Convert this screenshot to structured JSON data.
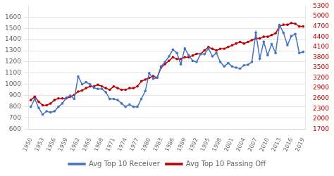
{
  "chart_data": {
    "type": "line",
    "x": [
      1950,
      1951,
      1952,
      1953,
      1954,
      1955,
      1956,
      1957,
      1958,
      1959,
      1960,
      1961,
      1962,
      1963,
      1964,
      1965,
      1966,
      1967,
      1968,
      1969,
      1970,
      1971,
      1972,
      1973,
      1974,
      1975,
      1976,
      1977,
      1978,
      1979,
      1980,
      1981,
      1982,
      1983,
      1984,
      1985,
      1986,
      1987,
      1988,
      1989,
      1990,
      1991,
      1992,
      1993,
      1994,
      1995,
      1996,
      1997,
      1998,
      1999,
      2000,
      2001,
      2002,
      2003,
      2004,
      2005,
      2006,
      2007,
      2008,
      2009,
      2010,
      2011,
      2012,
      2013,
      2014,
      2015,
      2016,
      2017,
      2018,
      2019
    ],
    "series": [
      {
        "name": "Avg Top 10 Receiver",
        "color": "#4472c4",
        "marker": "circle",
        "axis": "y",
        "values": [
          800,
          870,
          790,
          730,
          760,
          750,
          760,
          800,
          830,
          880,
          900,
          870,
          1070,
          1000,
          1020,
          1000,
          970,
          960,
          960,
          930,
          870,
          870,
          860,
          830,
          800,
          820,
          800,
          800,
          870,
          940,
          1100,
          1050,
          1060,
          1160,
          1200,
          1250,
          1310,
          1280,
          1180,
          1320,
          1260,
          1210,
          1200,
          1270,
          1270,
          1320,
          1250,
          1280,
          1200,
          1160,
          1190,
          1160,
          1150,
          1140,
          1170,
          1175,
          1200,
          1460,
          1230,
          1380,
          1260,
          1360,
          1280,
          1530,
          1460,
          1350,
          1430,
          1450,
          1280,
          1290
        ]
      },
      {
        "name": "Avg Top 10 Passing Off",
        "color": "#c00000",
        "marker": "circle",
        "axis": "y2",
        "values": [
          2550,
          2650,
          2500,
          2400,
          2400,
          2450,
          2550,
          2600,
          2600,
          2600,
          2650,
          2700,
          2800,
          2830,
          2900,
          2950,
          2950,
          3000,
          2950,
          2900,
          2850,
          2950,
          2900,
          2850,
          2850,
          2900,
          2900,
          2950,
          3100,
          3150,
          3200,
          3250,
          3200,
          3500,
          3600,
          3700,
          3800,
          3750,
          3750,
          3800,
          3800,
          3850,
          3900,
          3900,
          4000,
          4100,
          4050,
          4000,
          4050,
          4050,
          4100,
          4150,
          4200,
          4250,
          4200,
          4250,
          4300,
          4350,
          4350,
          4400,
          4400,
          4450,
          4500,
          4700,
          4750,
          4750,
          4800,
          4780,
          4700,
          4700
        ]
      }
    ],
    "xlim": [
      1949.5,
      2019.5
    ],
    "xticks": [
      1950,
      1953,
      1956,
      1959,
      1962,
      1965,
      1968,
      1971,
      1974,
      1977,
      1980,
      1983,
      1986,
      1989,
      1992,
      1995,
      1998,
      2001,
      2004,
      2007,
      2010,
      2013,
      2016,
      2019
    ],
    "ylim": [
      600,
      1700
    ],
    "yticks": [
      600,
      700,
      800,
      900,
      1000,
      1100,
      1200,
      1300,
      1400,
      1500,
      1600
    ],
    "y2lim": [
      1700,
      5300
    ],
    "y2ticks": [
      1700,
      2000,
      2300,
      2600,
      2900,
      3200,
      3500,
      3800,
      4100,
      4400,
      4700,
      5000,
      5300
    ],
    "grid": true,
    "legend": "bottom"
  }
}
